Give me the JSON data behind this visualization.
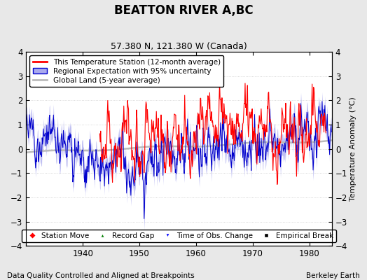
{
  "title": "BEATTON RIVER A,BC",
  "subtitle": "57.380 N, 121.380 W (Canada)",
  "ylabel": "Temperature Anomaly (°C)",
  "ylim": [
    -4,
    4
  ],
  "xlim": [
    1930,
    1984
  ],
  "xticks": [
    1940,
    1950,
    1960,
    1970,
    1980
  ],
  "yticks": [
    -4,
    -3,
    -2,
    -1,
    0,
    1,
    2,
    3,
    4
  ],
  "footnote_left": "Data Quality Controlled and Aligned at Breakpoints",
  "footnote_right": "Berkeley Earth",
  "legend_entries": [
    "This Temperature Station (12-month average)",
    "Regional Expectation with 95% uncertainty",
    "Global Land (5-year average)"
  ],
  "marker_legend": [
    {
      "label": "Station Move",
      "color": "red",
      "marker": "D"
    },
    {
      "label": "Record Gap",
      "color": "green",
      "marker": "^"
    },
    {
      "label": "Time of Obs. Change",
      "color": "blue",
      "marker": "v"
    },
    {
      "label": "Empirical Break",
      "color": "black",
      "marker": "s"
    }
  ],
  "station_color": "#FF0000",
  "regional_color": "#0000CC",
  "regional_fill_color": "#AAAAEE",
  "global_color": "#BBBBBB",
  "background_color": "#E8E8E8",
  "plot_bg_color": "#FFFFFF",
  "title_fontsize": 12,
  "subtitle_fontsize": 9,
  "label_fontsize": 8,
  "tick_fontsize": 8.5,
  "legend_fontsize": 7.5,
  "footnote_fontsize": 7.5
}
